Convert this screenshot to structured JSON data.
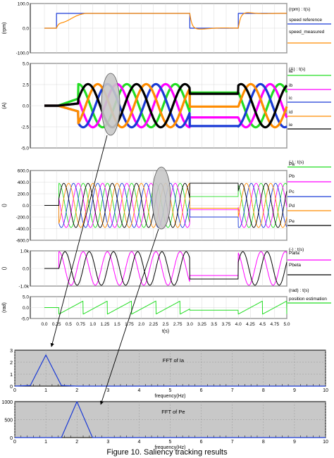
{
  "caption": "Figure 10. Saliency tracking results",
  "colors": {
    "blue": "#1a3ad6",
    "orange": "#ff8c00",
    "green": "#22dd22",
    "magenta": "#ff00ff",
    "black": "#000000",
    "grey_bg": "#c8c8c8"
  },
  "chart_data": [
    {
      "id": "speed",
      "type": "line",
      "ylabel": "(rpm)",
      "unit_label": "(rpm) : t(s)",
      "ylim": [
        -100,
        100
      ],
      "yticks": [
        "100.0",
        "0.0",
        "-100.0"
      ],
      "yticks_values": [
        100,
        0,
        -100
      ],
      "xlim": [
        0,
        5
      ],
      "series": [
        {
          "name": "speed reference",
          "color": "#1a3ad6"
        },
        {
          "name": "speed_measured",
          "color": "#ff8c00"
        }
      ]
    },
    {
      "id": "currents",
      "type": "line",
      "ylabel": "(A)",
      "unit_label": "(A) : t(s)",
      "ylim": [
        -5,
        5
      ],
      "yticks": [
        "5.0",
        "2.5",
        "0.0",
        "-2.5",
        "-5.0"
      ],
      "yticks_values": [
        5,
        2.5,
        0,
        -2.5,
        -5
      ],
      "xlim": [
        0,
        5
      ],
      "series": [
        {
          "name": "ia",
          "color": "#22dd22"
        },
        {
          "name": "ib",
          "color": "#ff00ff"
        },
        {
          "name": "ic",
          "color": "#1a3ad6"
        },
        {
          "name": "id",
          "color": "#ff8c00"
        },
        {
          "name": "ie",
          "color": "#000000"
        }
      ]
    },
    {
      "id": "saliency",
      "type": "line",
      "ylabel": "()",
      "unit_label": "(-) : t(s)",
      "ylim": [
        -600,
        600
      ],
      "yticks": [
        "600.0",
        "400.0",
        "200.0",
        "0.0",
        "-200.0",
        "-400.0",
        "-600.0"
      ],
      "yticks_values": [
        600,
        400,
        200,
        0,
        -200,
        -400,
        -600
      ],
      "xlim": [
        0,
        5
      ],
      "series": [
        {
          "name": "Pa",
          "color": "#22dd22"
        },
        {
          "name": "Pb",
          "color": "#ff00ff"
        },
        {
          "name": "Pc",
          "color": "#1a3ad6"
        },
        {
          "name": "Pd",
          "color": "#ff8c00"
        },
        {
          "name": "Pe",
          "color": "#000000"
        }
      ]
    },
    {
      "id": "alphabeta",
      "type": "line",
      "ylabel": "()",
      "unit_label": "(-) : t(s)",
      "ylim": [
        -1000,
        1000
      ],
      "yticks": [
        "1.0k",
        "0.0",
        "-1.0k"
      ],
      "yticks_values": [
        1000,
        0,
        -1000
      ],
      "xlim": [
        0,
        5
      ],
      "series": [
        {
          "name": "Palfa",
          "color": "#ff00ff"
        },
        {
          "name": "Pbeta",
          "color": "#000000"
        }
      ]
    },
    {
      "id": "position",
      "type": "line",
      "ylabel": "(rad)",
      "unit_label": "(rad) : t(s)",
      "ylim": [
        -5,
        5
      ],
      "yticks": [
        "5.0",
        "0.0",
        "-5.0"
      ],
      "yticks_values": [
        5,
        0,
        -5
      ],
      "xlim": [
        0,
        5
      ],
      "xticks": [
        "0.0",
        "0.25",
        "0.5",
        "0.75",
        "1.0",
        "1.25",
        "1.5",
        "1.75",
        "2.0",
        "2.25",
        "2.5",
        "2.75",
        "3.0",
        "3.25",
        "3.5",
        "3.75",
        "4.0",
        "4.25",
        "4.5",
        "4.75",
        "5.0"
      ],
      "xticks_values": [
        0,
        0.25,
        0.5,
        0.75,
        1,
        1.25,
        1.5,
        1.75,
        2,
        2.25,
        2.5,
        2.75,
        3,
        3.25,
        3.5,
        3.75,
        4,
        4.25,
        4.5,
        4.75,
        5
      ],
      "xlabel": "t(s)",
      "series": [
        {
          "name": "position estimation",
          "color": "#22dd22"
        }
      ]
    },
    {
      "id": "fft_ia",
      "type": "line",
      "title": "FFT of Ia",
      "xlabel": "frequency(Hz)",
      "xlim": [
        0,
        10
      ],
      "ylim": [
        0,
        3
      ],
      "xticks": [
        "0",
        "1",
        "2",
        "3",
        "4",
        "5",
        "6",
        "7",
        "8",
        "9",
        "10"
      ],
      "xticks_values": [
        0,
        1,
        2,
        3,
        4,
        5,
        6,
        7,
        8,
        9,
        10
      ],
      "yticks": [
        "3",
        "2",
        "1",
        "0"
      ],
      "yticks_values": [
        3,
        2,
        1,
        0
      ],
      "series": [
        {
          "color": "#1a3ad6",
          "x": [
            0,
            0.5,
            1.0,
            1.5,
            2,
            3,
            4,
            5,
            6,
            7,
            8,
            9,
            10
          ],
          "y": [
            0,
            0.05,
            2.6,
            0.05,
            0,
            0,
            0,
            0,
            0,
            0,
            0,
            0,
            0
          ]
        }
      ]
    },
    {
      "id": "fft_pe",
      "type": "line",
      "title": "FFT of Pe",
      "xlabel": "frequency(Hz)",
      "xlim": [
        0,
        10
      ],
      "ylim": [
        0,
        1000
      ],
      "xticks": [
        "0",
        "1",
        "2",
        "3",
        "4",
        "5",
        "6",
        "7",
        "8",
        "9",
        "10"
      ],
      "xticks_values": [
        0,
        1,
        2,
        3,
        4,
        5,
        6,
        7,
        8,
        9,
        10
      ],
      "yticks": [
        "1000",
        "500",
        "0"
      ],
      "yticks_values": [
        1000,
        500,
        0
      ],
      "series": [
        {
          "color": "#1a3ad6",
          "x": [
            0,
            1,
            1.5,
            2.0,
            2.5,
            3,
            4,
            5,
            6,
            7,
            8,
            9,
            10
          ],
          "y": [
            0,
            0,
            0,
            1000,
            0,
            0,
            0,
            0,
            0,
            0,
            0,
            0,
            0
          ]
        }
      ]
    }
  ]
}
